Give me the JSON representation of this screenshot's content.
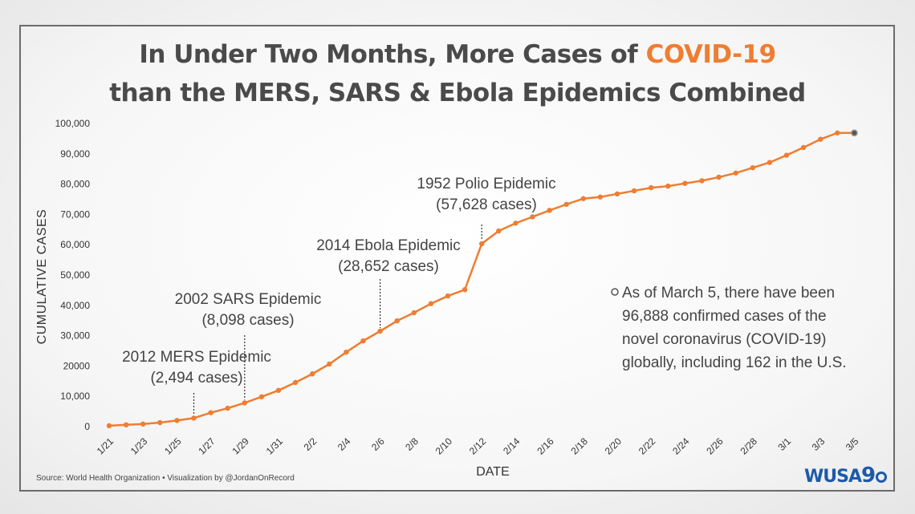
{
  "title": {
    "line1_prefix": "In Under Two Months, More Cases of ",
    "line1_highlight": "COVID-19",
    "line2": "than the MERS, SARS & Ebola Epidemics Combined",
    "highlight_color": "#ef7d32"
  },
  "source": "Source: World Health Organization • Visualization by @JordanOnRecord",
  "logo": {
    "text": "WUSA",
    "nine": "9"
  },
  "chart_data": {
    "type": "line",
    "xlabel": "DATE",
    "ylabel": "CUMULATIVE CASES",
    "ylim": [
      0,
      100000
    ],
    "yticks": [
      0,
      10000,
      20000,
      30000,
      40000,
      50000,
      60000,
      70000,
      80000,
      90000,
      100000
    ],
    "ytick_labels": [
      "0",
      "10,000",
      "20000",
      "30,000",
      "40,000",
      "50,000",
      "60,000",
      "70,000",
      "80,000",
      "90,000",
      "100,000"
    ],
    "xtick_labels": [
      "1/21",
      "1/23",
      "1/25",
      "1/27",
      "1/29",
      "1/31",
      "2/2",
      "2/4",
      "2/6",
      "2/8",
      "2/10",
      "2/12",
      "2/14",
      "2/16",
      "2/18",
      "2/20",
      "2/22",
      "2/24",
      "2/26",
      "2/28",
      "3/1",
      "3/3",
      "3/5"
    ],
    "grid": false,
    "line_color": "#ef7d32",
    "series": [
      {
        "x": [
          "1/21",
          "1/22",
          "1/23",
          "1/24",
          "1/25",
          "1/26",
          "1/27",
          "1/28",
          "1/29",
          "1/30",
          "1/31",
          "2/1",
          "2/2",
          "2/3",
          "2/4",
          "2/5",
          "2/6",
          "2/7",
          "2/8",
          "2/9",
          "2/10",
          "2/11",
          "2/12",
          "2/13",
          "2/14",
          "2/15",
          "2/16",
          "2/17",
          "2/18",
          "2/19",
          "2/20",
          "2/21",
          "2/22",
          "2/23",
          "2/24",
          "2/25",
          "2/26",
          "2/27",
          "2/28",
          "2/29",
          "3/1",
          "3/2",
          "3/3",
          "3/4",
          "3/5"
        ],
        "values": [
          282,
          580,
          845,
          1320,
          2014,
          2798,
          4593,
          6065,
          7818,
          9826,
          11953,
          14557,
          17391,
          20630,
          24554,
          28276,
          31481,
          34886,
          37558,
          40554,
          43103,
          45171,
          60328,
          64543,
          67100,
          69197,
          71329,
          73332,
          75204,
          75748,
          76769,
          77794,
          78811,
          79331,
          80239,
          81109,
          82294,
          83652,
          85403,
          87137,
          89531,
          92080,
          94790,
          96888,
          96888
        ]
      }
    ],
    "annotations": [
      {
        "line1": "2012 MERS Epidemic",
        "line2": "(2,494 cases)",
        "x": "1/26"
      },
      {
        "line1": "2002 SARS Epidemic",
        "line2": "(8,098 cases)",
        "x": "1/29"
      },
      {
        "line1": "2014 Ebola Epidemic",
        "line2": "(28,652 cases)",
        "x": "2/6"
      },
      {
        "line1": "1952 Polio Epidemic",
        "line2": "(57,628 cases)",
        "x": "2/12"
      }
    ],
    "note": {
      "lines": [
        "As of March 5, there have been",
        "96,888 confirmed cases of the",
        "novel coronavirus (COVID-19)",
        "globally, including 162 in the U.S."
      ]
    }
  }
}
